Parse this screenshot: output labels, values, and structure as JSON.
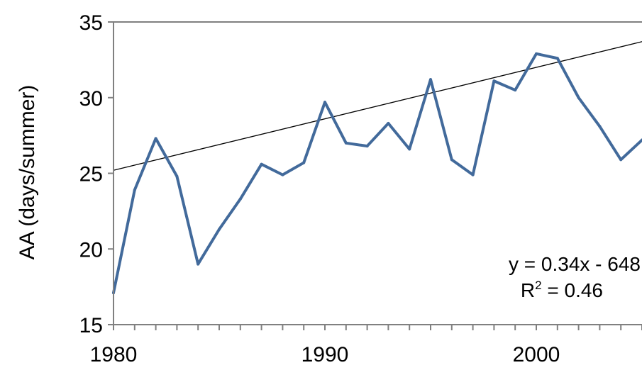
{
  "chart_data": {
    "type": "line",
    "title": "",
    "xlabel": "",
    "ylabel": "AA (days/summer)",
    "xlim": [
      1980,
      2005
    ],
    "ylim": [
      15,
      35
    ],
    "x_ticks": [
      1980,
      1990,
      2000
    ],
    "y_ticks": [
      15,
      20,
      25,
      30,
      35
    ],
    "grid": false,
    "legend": "none",
    "colors": {
      "series": "#426a9b",
      "trend": "#000000",
      "axis": "#808080"
    },
    "series": [
      {
        "x": [
          1980,
          1981,
          1982,
          1983,
          1984,
          1985,
          1986,
          1987,
          1988,
          1989,
          1990,
          1991,
          1992,
          1993,
          1994,
          1995,
          1996,
          1997,
          1998,
          1999,
          2000,
          2001,
          2002,
          2003,
          2004,
          2005
        ],
        "values": [
          17.1,
          23.9,
          27.3,
          24.8,
          19.0,
          21.3,
          23.3,
          25.6,
          24.9,
          25.7,
          29.7,
          27.0,
          26.8,
          28.3,
          26.6,
          31.2,
          25.9,
          24.9,
          31.1,
          30.5,
          32.9,
          32.6,
          30.0,
          28.1,
          25.9,
          27.2
        ]
      }
    ],
    "trendline": {
      "slope": 0.34,
      "intercept": -648,
      "equation": "y = 0.34x - 648",
      "r2_label": "R",
      "r2_sup": "2",
      "r2_value": " = 0.46"
    }
  }
}
